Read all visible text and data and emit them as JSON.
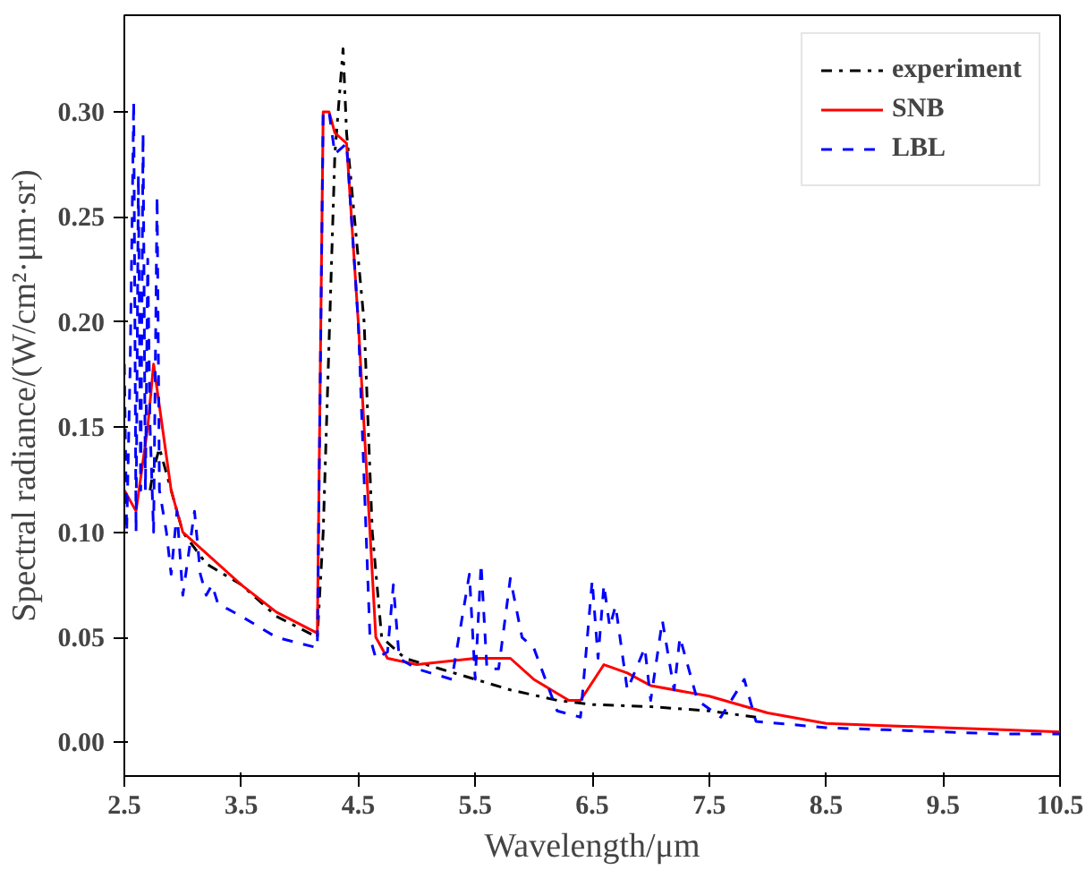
{
  "chart_data": {
    "type": "line",
    "xlabel": "Wavelength/μm",
    "ylabel": "Spectral radiance/(W/cm²·μm·sr)",
    "xlim": [
      2.5,
      10.5
    ],
    "ylim": [
      -0.016,
      0.346
    ],
    "xticks": [
      2.5,
      3.5,
      4.5,
      5.5,
      6.5,
      7.5,
      8.5,
      9.5,
      10.5
    ],
    "yticks": [
      {
        "value": 0,
        "label": "0.00"
      },
      {
        "value": 0.05,
        "label": "0.05"
      },
      {
        "value": 0.1,
        "label": "0.10"
      },
      {
        "value": 0.15,
        "label": "0.15"
      },
      {
        "value": 0.2,
        "label": "0.20"
      },
      {
        "value": 0.25,
        "label": "0.25"
      },
      {
        "value": 0.3,
        "label": "0.30"
      }
    ],
    "grid": false,
    "legend": "top right",
    "marker": "none",
    "series": [
      {
        "name": "experiment",
        "color": "#000000",
        "line_style": "dashdot",
        "x": [
          2.72,
          2.75,
          2.8,
          2.85,
          2.9,
          3.0,
          3.2,
          3.5,
          3.8,
          4.15,
          4.2,
          4.3,
          4.37,
          4.4,
          4.55,
          4.62,
          4.7,
          4.9,
          5.2,
          5.5,
          5.8,
          6.2,
          6.5,
          7.0,
          7.5,
          7.9
        ],
        "values": [
          0.12,
          0.13,
          0.14,
          0.13,
          0.12,
          0.1,
          0.085,
          0.075,
          0.06,
          0.05,
          0.1,
          0.28,
          0.33,
          0.29,
          0.2,
          0.1,
          0.05,
          0.04,
          0.035,
          0.03,
          0.025,
          0.02,
          0.018,
          0.017,
          0.015,
          0.012
        ]
      },
      {
        "name": "SNB",
        "color": "#ff0000",
        "line_style": "solid",
        "x": [
          2.5,
          2.6,
          2.7,
          2.75,
          2.8,
          2.9,
          3.0,
          3.2,
          3.5,
          3.8,
          4.15,
          4.2,
          4.25,
          4.3,
          4.4,
          4.5,
          4.6,
          4.65,
          4.75,
          5.0,
          5.5,
          5.8,
          6.0,
          6.3,
          6.4,
          6.6,
          6.8,
          7.0,
          7.5,
          8.0,
          8.5,
          9.0,
          9.5,
          10.0,
          10.5
        ],
        "values": [
          0.12,
          0.11,
          0.15,
          0.18,
          0.16,
          0.12,
          0.1,
          0.09,
          0.075,
          0.062,
          0.052,
          0.3,
          0.3,
          0.29,
          0.285,
          0.2,
          0.1,
          0.05,
          0.04,
          0.037,
          0.04,
          0.04,
          0.03,
          0.02,
          0.02,
          0.037,
          0.033,
          0.027,
          0.022,
          0.014,
          0.009,
          0.008,
          0.007,
          0.006,
          0.005
        ]
      },
      {
        "name": "LBL",
        "color": "#0000ff",
        "line_style": "dashed",
        "x": [
          2.5,
          2.52,
          2.55,
          2.58,
          2.6,
          2.62,
          2.64,
          2.66,
          2.68,
          2.7,
          2.72,
          2.75,
          2.78,
          2.8,
          2.83,
          2.86,
          2.9,
          2.95,
          3.0,
          3.05,
          3.1,
          3.15,
          3.2,
          3.25,
          3.3,
          3.5,
          3.8,
          4.15,
          4.2,
          4.25,
          4.3,
          4.4,
          4.5,
          4.6,
          4.65,
          4.75,
          4.8,
          4.85,
          5.0,
          5.3,
          5.45,
          5.5,
          5.55,
          5.6,
          5.7,
          5.8,
          5.9,
          6.0,
          6.1,
          6.2,
          6.4,
          6.5,
          6.55,
          6.6,
          6.65,
          6.7,
          6.8,
          6.95,
          7.0,
          7.1,
          7.2,
          7.25,
          7.4,
          7.6,
          7.8,
          7.9,
          8.5,
          9.0,
          10.0,
          10.5
        ],
        "values": [
          0.18,
          0.1,
          0.18,
          0.305,
          0.1,
          0.27,
          0.12,
          0.29,
          0.12,
          0.23,
          0.15,
          0.1,
          0.26,
          0.12,
          0.11,
          0.1,
          0.08,
          0.11,
          0.07,
          0.09,
          0.11,
          0.08,
          0.07,
          0.075,
          0.066,
          0.06,
          0.05,
          0.045,
          0.3,
          0.3,
          0.28,
          0.285,
          0.2,
          0.05,
          0.04,
          0.043,
          0.075,
          0.04,
          0.035,
          0.03,
          0.08,
          0.03,
          0.085,
          0.035,
          0.035,
          0.078,
          0.05,
          0.045,
          0.03,
          0.015,
          0.012,
          0.077,
          0.04,
          0.075,
          0.055,
          0.065,
          0.025,
          0.045,
          0.02,
          0.058,
          0.025,
          0.05,
          0.02,
          0.012,
          0.03,
          0.01,
          0.007,
          0.006,
          0.004,
          0.004
        ]
      }
    ]
  }
}
